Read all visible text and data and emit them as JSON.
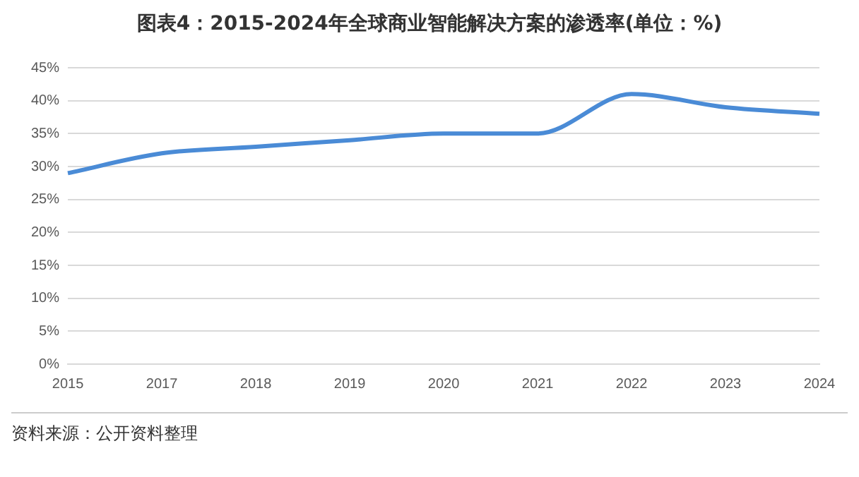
{
  "chart_data": {
    "type": "line",
    "title": "图表4：2015-2024年全球商业智能解决方案的渗透率(单位：%)",
    "categories": [
      "2015",
      "2017",
      "2018",
      "2019",
      "2020",
      "2021",
      "2022",
      "2023",
      "2024"
    ],
    "series": [
      {
        "color": "#4a8bd6",
        "values": [
          29,
          32,
          33,
          34,
          35,
          35,
          41,
          39,
          38
        ]
      }
    ],
    "ylim": [
      0,
      45
    ],
    "yticks": [
      {
        "value": 0,
        "label": "0%"
      },
      {
        "value": 5,
        "label": "5%"
      },
      {
        "value": 10,
        "label": "10%"
      },
      {
        "value": 15,
        "label": "15%"
      },
      {
        "value": 20,
        "label": "20%"
      },
      {
        "value": 25,
        "label": "25%"
      },
      {
        "value": 30,
        "label": "30%"
      },
      {
        "value": 35,
        "label": "35%"
      },
      {
        "value": 40,
        "label": "40%"
      },
      {
        "value": 45,
        "label": "45%"
      }
    ],
    "grid": "y",
    "legend": false,
    "marker": "none",
    "annotations": [
      "资料来源：公开资料整理"
    ]
  }
}
